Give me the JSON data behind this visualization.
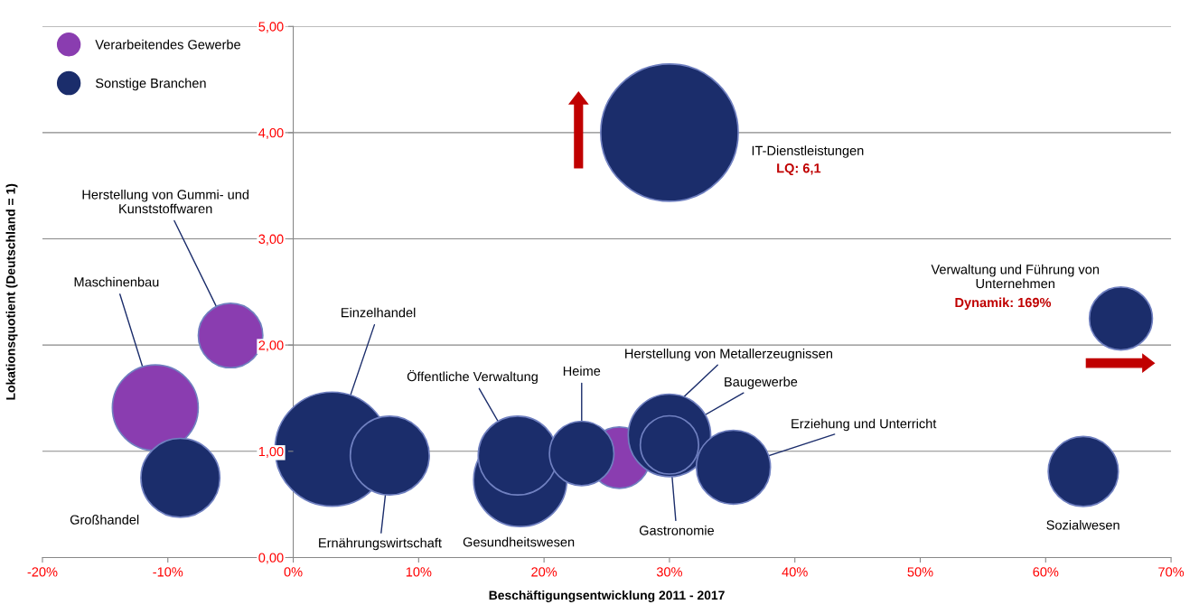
{
  "chart_data": {
    "type": "bubble",
    "xlabel": "Beschäftigungsentwicklung 2011 - 2017",
    "ylabel": "Lokationsquotient (Deutschland = 1)",
    "xlim": [
      -20,
      70
    ],
    "ylim": [
      0,
      5
    ],
    "xticks": [
      {
        "value": -20,
        "label": "-20%"
      },
      {
        "value": -10,
        "label": "-10%"
      },
      {
        "value": 0,
        "label": "0%"
      },
      {
        "value": 10,
        "label": "10%"
      },
      {
        "value": 20,
        "label": "20%"
      },
      {
        "value": 30,
        "label": "30%"
      },
      {
        "value": 40,
        "label": "40%"
      },
      {
        "value": 50,
        "label": "50%"
      },
      {
        "value": 60,
        "label": "60%"
      },
      {
        "value": 70,
        "label": "70%"
      }
    ],
    "yticks": [
      {
        "value": 0,
        "label": "0,00"
      },
      {
        "value": 1,
        "label": "1,00"
      },
      {
        "value": 2,
        "label": "2,00"
      },
      {
        "value": 3,
        "label": "3,00"
      },
      {
        "value": 4,
        "label": "4,00"
      },
      {
        "value": 5,
        "label": "5,00"
      }
    ],
    "grid": "y",
    "legend": "top left",
    "series": [
      {
        "name": "Verarbeitendes Gewerbe",
        "color": "#8a3db0",
        "x": [
          -5.0,
          -11.0,
          26.0
        ],
        "values": [
          2.09,
          1.41,
          0.94
        ],
        "sizes": [
          0.22,
          0.39,
          0.2
        ]
      },
      {
        "name": "Sonstige Branchen",
        "color": "#1b2d6b",
        "x": [
          30.0,
          66.0,
          63.0,
          -9.0,
          3.1,
          7.7,
          18.1,
          17.9,
          23.0,
          30.0,
          30.0,
          35.1
        ],
        "values": [
          4.0,
          2.25,
          0.81,
          0.75,
          1.02,
          0.96,
          0.73,
          0.96,
          0.98,
          1.15,
          1.06,
          0.85
        ],
        "sizes": [
          1,
          0.21,
          0.26,
          0.33,
          0.69,
          0.33,
          0.46,
          0.33,
          0.22,
          0.36,
          0.18,
          0.29
        ]
      }
    ],
    "annotations": [
      "IT-Dienstleistungen",
      "LQ: 6,1",
      "Verwaltung und Führung von\nUnternehmen",
      "Dynamik: 169%",
      "Sozialwesen",
      {
        "text": "Herstellung von Gummi- und\nKunststoffwaren",
        "x": -5.0,
        "y": 2.09
      },
      {
        "text": "Maschinenbau",
        "x": -11.0,
        "y": 1.41
      },
      "Großhandel",
      {
        "text": "Einzelhandel",
        "x": 3.1,
        "y": 1.02
      },
      {
        "text": "Ernährungswirtschaft",
        "x": 7.7,
        "y": 0.96
      },
      "Gesundheitswesen",
      {
        "text": "Öffentliche Verwaltung",
        "x": 17.9,
        "y": 0.96
      },
      {
        "text": "Heime",
        "x": 23.0,
        "y": 0.98
      },
      {
        "text": "Herstellung von Metallerzeugnissen",
        "x": 26.0,
        "y": 0.94
      },
      {
        "text": "Baugewerbe",
        "x": 30.0,
        "y": 1.15
      },
      {
        "text": "Gastronomie",
        "x": 30.0,
        "y": 1.06
      },
      {
        "text": "Erziehung und Unterricht",
        "x": 35.1,
        "y": 0.85
      }
    ]
  }
}
